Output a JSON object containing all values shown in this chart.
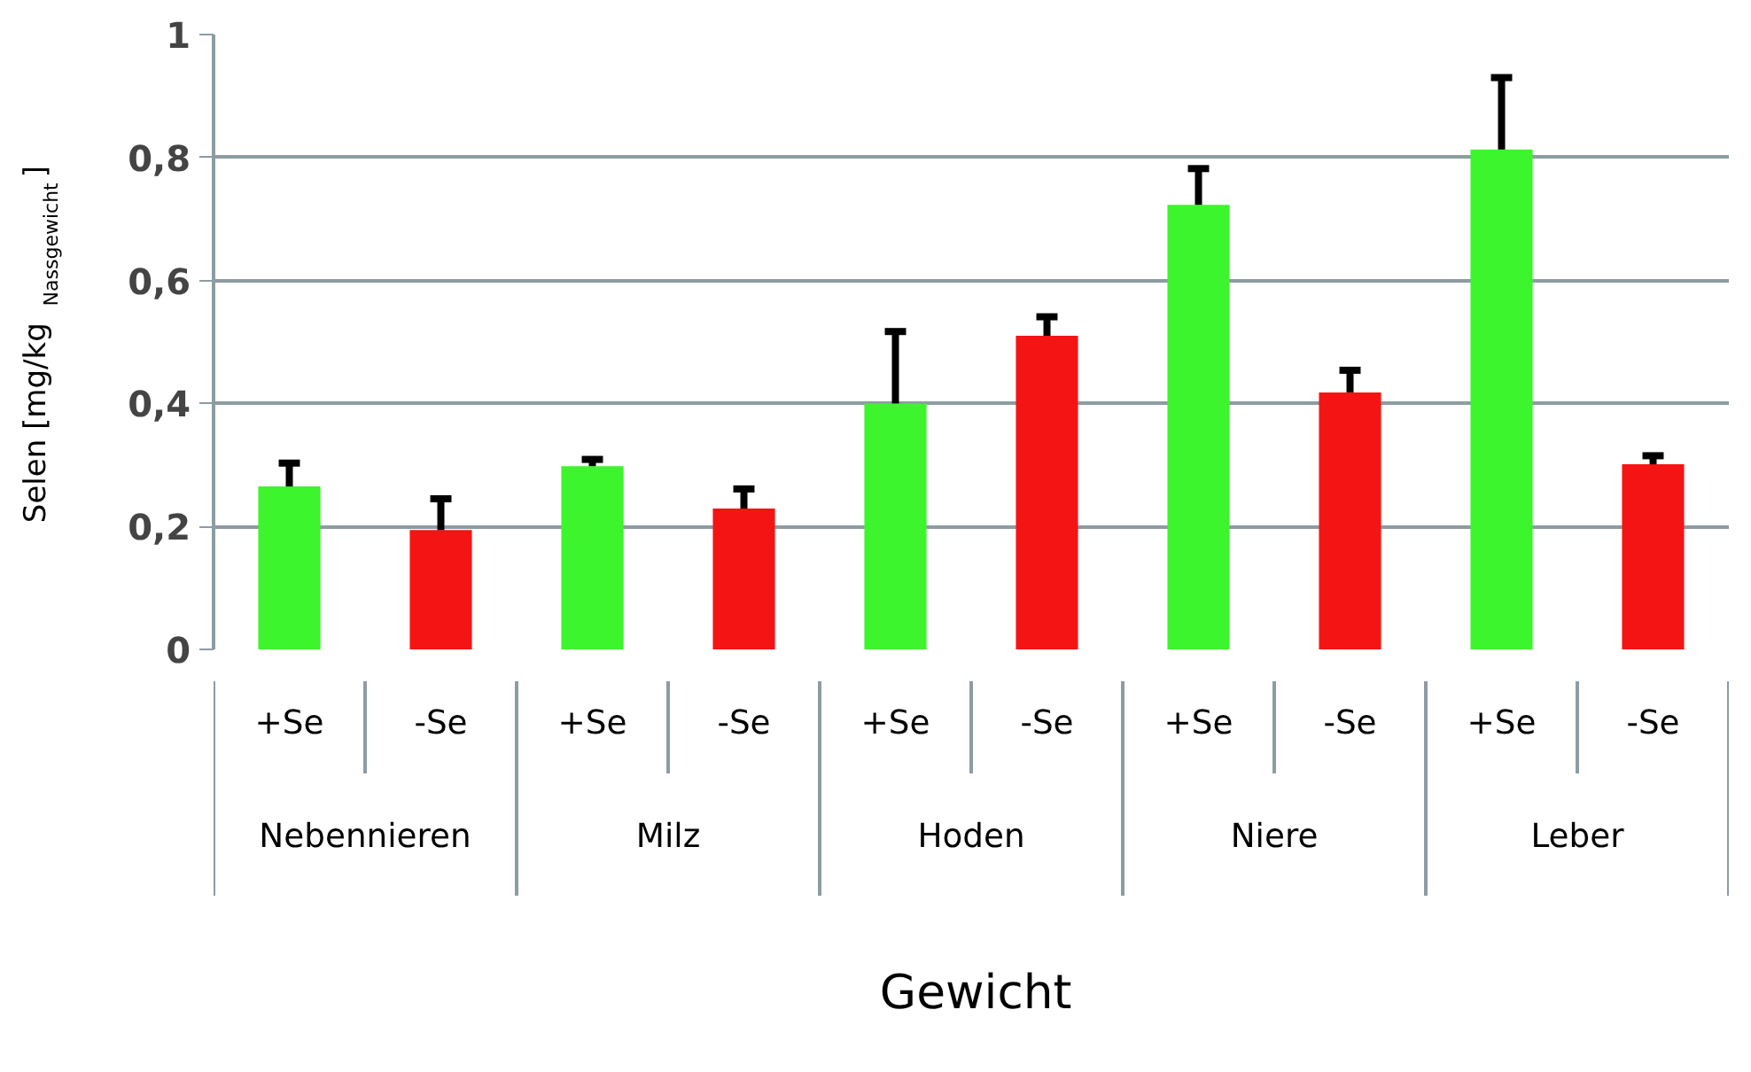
{
  "chart_data": {
    "type": "bar",
    "ylabel": "Selen [mg/kg$_{Nassgewicht}$]",
    "categories": [
      "+Se",
      "-Se",
      "+Se",
      "-Se",
      "+Se",
      "-Se",
      "+Se",
      "-Se",
      "+Se",
      "-Se"
    ],
    "values": [
      0.265,
      0.194,
      0.298,
      0.229,
      0.4,
      0.51,
      0.723,
      0.418,
      0.813,
      0.301
    ],
    "colors": [
      "#3cf52d",
      "#f51414",
      "#3cf52d",
      "#f51414",
      "#3cf52d",
      "#f51414",
      "#3cf52d",
      "#f51414",
      "#3cf52d",
      "#f51414"
    ],
    "errors": [
      [
        0.265,
        0.303
      ],
      [
        0.194,
        0.245
      ],
      [
        0.298,
        0.309
      ],
      [
        0.229,
        0.261
      ],
      [
        0.4,
        0.517
      ],
      [
        0.51,
        0.541
      ],
      [
        0.723,
        0.782
      ],
      [
        0.418,
        0.454
      ],
      [
        0.813,
        0.93
      ],
      [
        0.301,
        0.315
      ]
    ],
    "ylim": [
      0,
      1
    ],
    "yticks": [
      0,
      {
        "value": 0.2,
        "label": "0,2"
      },
      {
        "value": 0.4,
        "label": "0,4"
      },
      {
        "value": 0.6,
        "label": "0,6"
      },
      {
        "value": 0.8,
        "label": "0,8"
      },
      1
    ],
    "grid": "y",
    "annotations": [
      "Nebennieren",
      "Milz",
      "Hoden",
      "Niere",
      "Leber",
      "Gewicht"
    ]
  }
}
